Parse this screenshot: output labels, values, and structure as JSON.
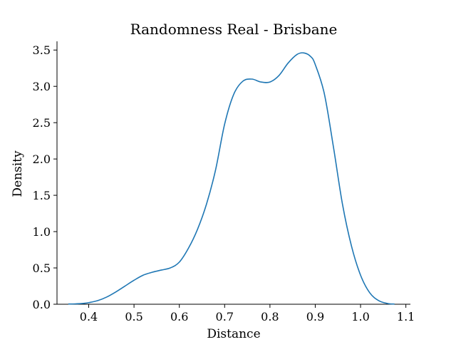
{
  "chart_data": {
    "type": "line",
    "title": "Randomness Real - Brisbane",
    "xlabel": "Distance",
    "ylabel": "Density",
    "xlim": [
      0.33,
      1.11
    ],
    "ylim": [
      0.0,
      3.62
    ],
    "xticks": [
      "0.4",
      "0.5",
      "0.6",
      "0.7",
      "0.8",
      "0.9",
      "1.0",
      "1.1"
    ],
    "yticks": [
      "0.0",
      "0.5",
      "1.0",
      "1.5",
      "2.0",
      "2.5",
      "3.0",
      "3.5"
    ],
    "grid": false,
    "series": [
      {
        "color": "#1f77b4",
        "x": [
          0.355,
          0.37,
          0.38,
          0.39,
          0.4,
          0.42,
          0.44,
          0.46,
          0.48,
          0.5,
          0.52,
          0.54,
          0.56,
          0.58,
          0.6,
          0.62,
          0.64,
          0.66,
          0.68,
          0.7,
          0.72,
          0.74,
          0.76,
          0.78,
          0.8,
          0.82,
          0.84,
          0.86,
          0.875,
          0.89,
          0.9,
          0.92,
          0.94,
          0.96,
          0.98,
          1.0,
          1.02,
          1.04,
          1.06,
          1.075
        ],
        "y": [
          0.003,
          0.005,
          0.008,
          0.013,
          0.022,
          0.05,
          0.1,
          0.17,
          0.25,
          0.33,
          0.4,
          0.44,
          0.47,
          0.5,
          0.58,
          0.77,
          1.03,
          1.38,
          1.85,
          2.48,
          2.89,
          3.07,
          3.1,
          3.06,
          3.06,
          3.15,
          3.32,
          3.44,
          3.46,
          3.41,
          3.3,
          2.9,
          2.17,
          1.38,
          0.8,
          0.4,
          0.16,
          0.05,
          0.01,
          0.002
        ]
      }
    ]
  }
}
